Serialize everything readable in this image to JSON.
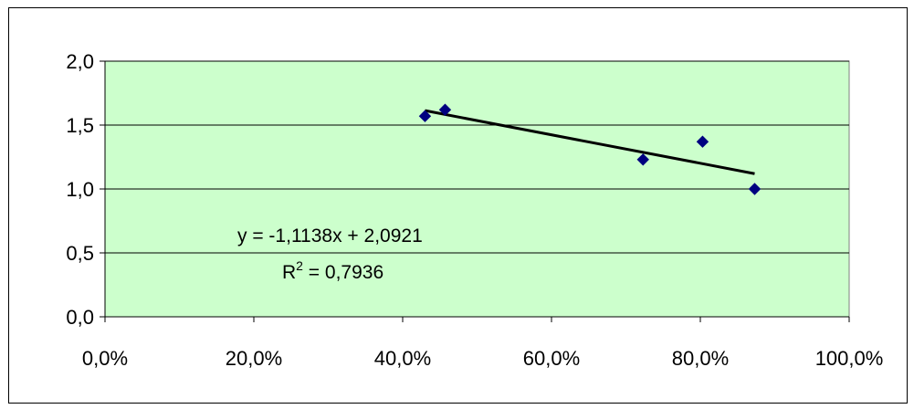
{
  "chart_data": {
    "type": "scatter",
    "title": "",
    "xlabel": "",
    "ylabel": "",
    "xlim": [
      0,
      1
    ],
    "ylim": [
      0,
      2
    ],
    "x_ticks": [
      "0,0%",
      "20,0%",
      "40,0%",
      "60,0%",
      "80,0%",
      "100,0%"
    ],
    "y_ticks": [
      "0,0",
      "0,5",
      "1,0",
      "1,5",
      "2,0"
    ],
    "points": [
      {
        "x": 0.43,
        "y": 1.57
      },
      {
        "x": 0.457,
        "y": 1.62
      },
      {
        "x": 0.723,
        "y": 1.23
      },
      {
        "x": 0.803,
        "y": 1.37
      },
      {
        "x": 0.873,
        "y": 1.0
      }
    ],
    "trendline": {
      "slope": -1.1138,
      "intercept": 2.0921,
      "x_start": 0.43,
      "x_end": 0.873
    },
    "annotations": {
      "equation": "y = -1,1138x + 2,0921",
      "r_label": "R",
      "r_exponent": "2",
      "r_value": " = 0,7936"
    },
    "grid": true,
    "legend": "none",
    "colors": {
      "plot_background": "#ccffcc",
      "marker": "#000080",
      "trendline": "#000000",
      "gridline": "#000000"
    }
  }
}
